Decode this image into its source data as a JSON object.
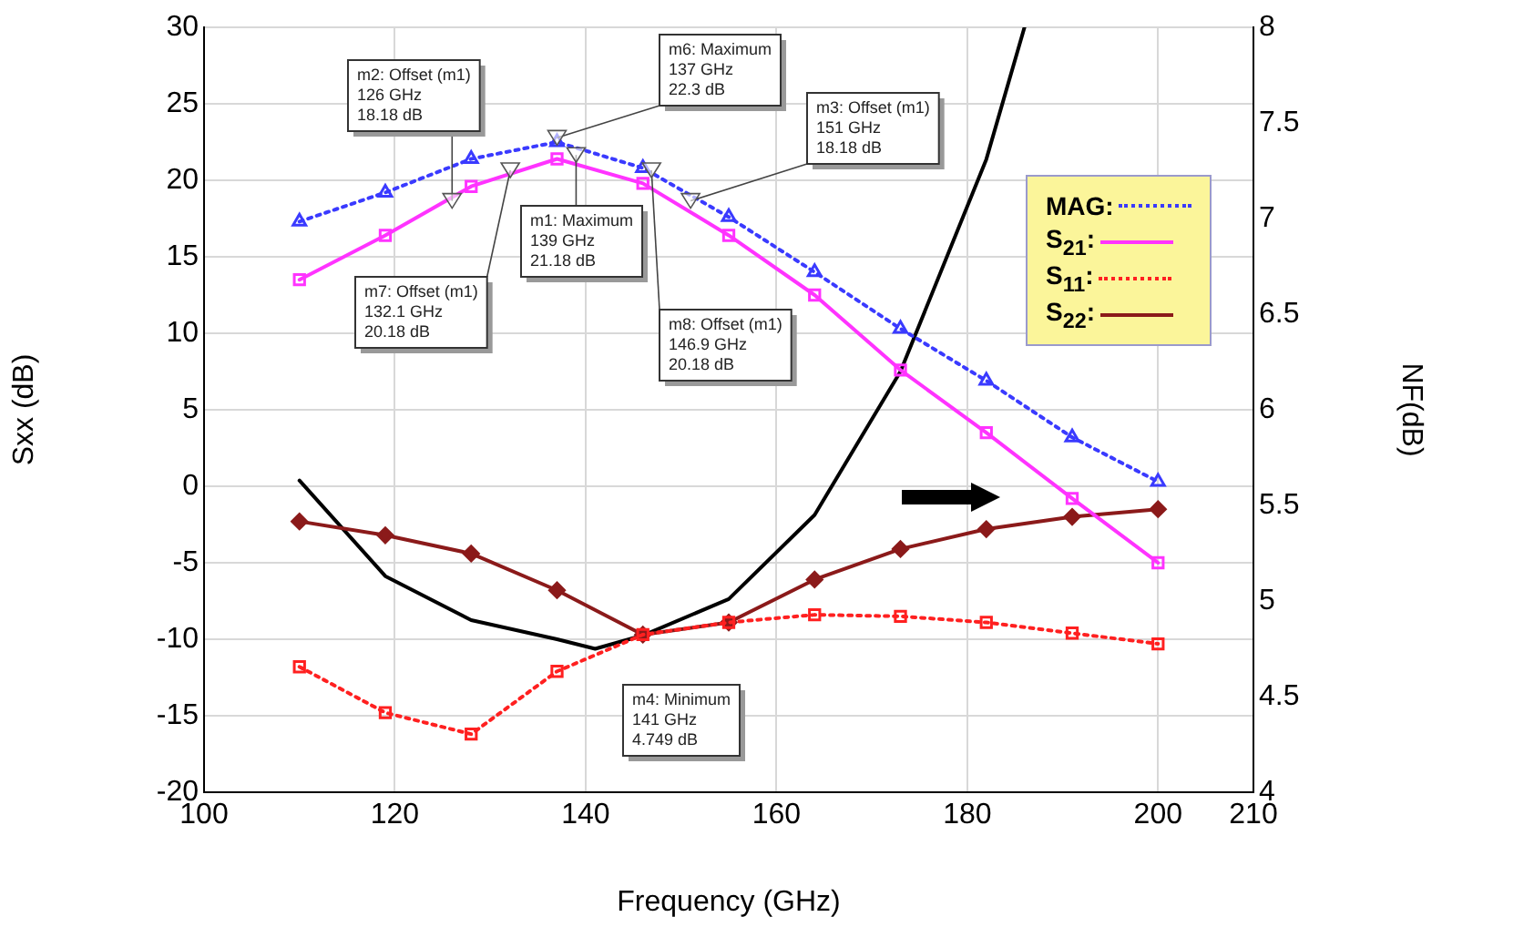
{
  "chart_data": {
    "type": "line",
    "xlabel": "Frequency (GHz)",
    "ylabel": "Sxx (dB)",
    "y2label": "NF(dB)",
    "xlim": [
      100,
      210
    ],
    "xticks": [
      100,
      120,
      140,
      160,
      180,
      200,
      210
    ],
    "ylim": [
      -20,
      30
    ],
    "yticks": [
      -20,
      -15,
      -10,
      -5,
      0,
      5,
      10,
      15,
      20,
      25,
      30
    ],
    "y2lim": [
      4,
      8
    ],
    "y2ticks": [
      4,
      4.5,
      5,
      5.5,
      6,
      6.5,
      7,
      7.5,
      8
    ],
    "x": [
      110,
      119,
      128,
      137,
      146,
      155,
      164,
      173,
      182,
      191,
      200
    ],
    "series": [
      {
        "name": "MAG:",
        "color": "#3a3aff",
        "line_style": "dotted",
        "marker": "triangle",
        "values": [
          17.3,
          19.2,
          21.4,
          22.5,
          20.8,
          17.6,
          14.0,
          10.3,
          6.9,
          3.2,
          0.3
        ]
      },
      {
        "name": "S$_{21}$:",
        "color": "#ff33ff",
        "line_style": "solid",
        "marker": "square",
        "values": [
          13.5,
          16.4,
          19.6,
          21.4,
          19.8,
          16.4,
          12.5,
          7.6,
          3.5,
          -0.8,
          -5.0
        ]
      },
      {
        "name": "S$_{11}$:",
        "color": "#ff2020",
        "line_style": "dotted",
        "marker": "square",
        "values": [
          -11.8,
          -14.8,
          -16.2,
          -12.1,
          -9.7,
          -8.9,
          -8.4,
          -8.5,
          -8.9,
          -9.6,
          -10.3
        ]
      },
      {
        "name": "S$_{22}$:",
        "color": "#8b1a1a",
        "line_style": "solid",
        "marker": "diamond",
        "values": [
          -2.3,
          -3.2,
          -4.4,
          -6.8,
          -9.7,
          -8.9,
          -6.1,
          -4.1,
          -2.8,
          -2.0,
          -1.5
        ]
      },
      {
        "color": "#000000",
        "line_style": "solid",
        "marker": "none",
        "axis": "y2",
        "x": [
          110,
          119,
          128,
          137,
          141,
          146,
          155,
          164,
          173,
          182,
          186
        ],
        "values": [
          5.63,
          5.13,
          4.9,
          4.8,
          4.75,
          4.82,
          5.01,
          5.45,
          6.2,
          7.31,
          8.0
        ]
      }
    ],
    "annotations": [
      {
        "text": "m2: Offset (m1)\n126 GHz\n18.18 dB",
        "x": 126,
        "y": 18.18
      },
      {
        "text": "m6: Maximum\n137 GHz\n22.3 dB",
        "x": 137,
        "y": 22.3
      },
      {
        "text": "m3: Offset (m1)\n151 GHz\n18.18 dB",
        "x": 151,
        "y": 18.18
      },
      {
        "text": "m7: Offset (m1)\n132.1 GHz\n20.18 dB",
        "x": 132.1,
        "y": 20.18
      },
      {
        "text": "m1: Maximum\n139 GHz\n21.18 dB",
        "x": 139,
        "y": 21.18
      },
      {
        "text": "m8: Offset (m1)\n146.9 GHz\n20.18 dB",
        "x": 146.9,
        "y": 20.18
      },
      "m4: Minimum\n141 GHz\n4.749 dB"
    ],
    "grid": true,
    "legend": "right"
  }
}
